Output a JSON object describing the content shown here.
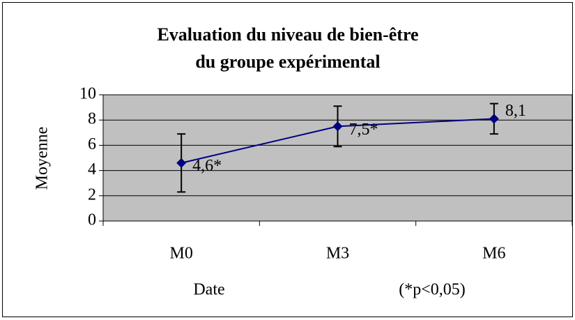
{
  "chart_data": {
    "type": "line",
    "title": [
      "Evaluation du niveau de bien-être",
      "du groupe expérimental"
    ],
    "xlabel": "Date",
    "ylabel": "Moyenne",
    "annotation": "(*p<0,05)",
    "categories": [
      "M0",
      "M3",
      "M6"
    ],
    "series": [
      {
        "name": "Moyenne",
        "color": "#000080",
        "values": [
          4.6,
          7.5,
          8.1
        ],
        "errors": [
          2.3,
          1.6,
          1.2
        ],
        "value_labels": [
          "4,6*",
          "7,5*",
          "8,1"
        ]
      }
    ],
    "ylim": [
      0,
      10
    ],
    "yticks": [
      0,
      2,
      4,
      6,
      8,
      10
    ],
    "grid": true,
    "plot_background": "#c0c0c0"
  }
}
